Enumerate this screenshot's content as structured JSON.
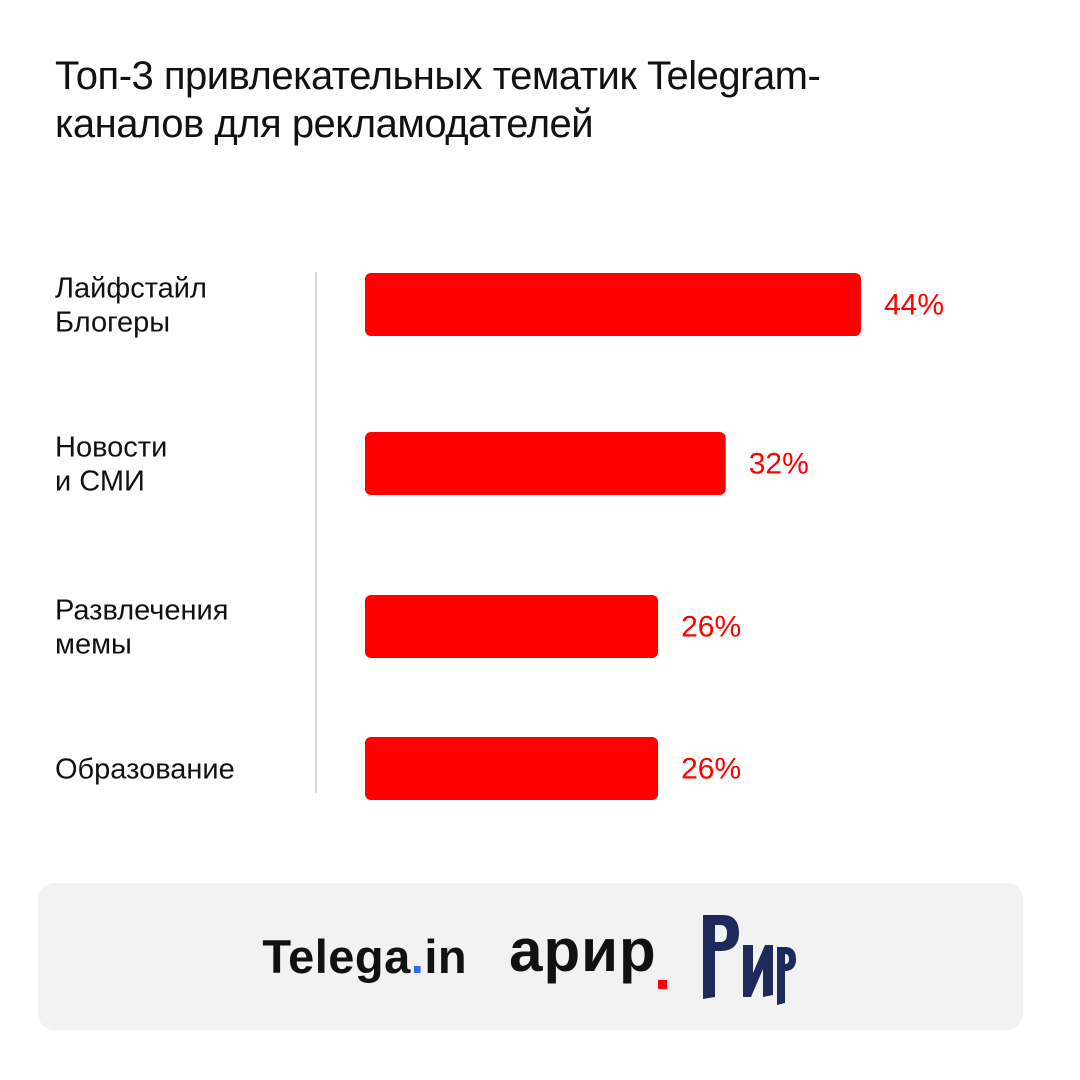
{
  "title": {
    "line1": "Топ-3 привлекательных тематик Telegram-",
    "line2": "каналов для рекламодателей"
  },
  "colors": {
    "bar": "#ff0000",
    "value_text": "#ff0000",
    "text": "#111111",
    "axis": "#d9d9d9",
    "footer_bg": "#f2f2f2",
    "telega_dot": "#2d6cf5",
    "rir_logo": "#1f2a5c"
  },
  "chart_data": {
    "type": "bar",
    "orientation": "horizontal",
    "title": "Топ-3 привлекательных тематик Telegram-каналов для рекламодателей",
    "categories": [
      [
        "Лайфстайл",
        "Блогеры"
      ],
      [
        "Новости",
        "и СМИ"
      ],
      [
        "Развлечения",
        "мемы"
      ],
      [
        "Образование"
      ]
    ],
    "values": [
      44,
      32,
      26,
      26
    ],
    "value_labels": [
      "44%",
      "32%",
      "26%",
      "26%"
    ],
    "unit": "%",
    "xlim": [
      0,
      44
    ],
    "grid": false,
    "legend": "none"
  },
  "footer": {
    "logo_telega_main": "Telega",
    "logo_telega_dot": ".",
    "logo_telega_tail": "in",
    "logo_apir": "арир",
    "logo_rir": "РИР"
  }
}
